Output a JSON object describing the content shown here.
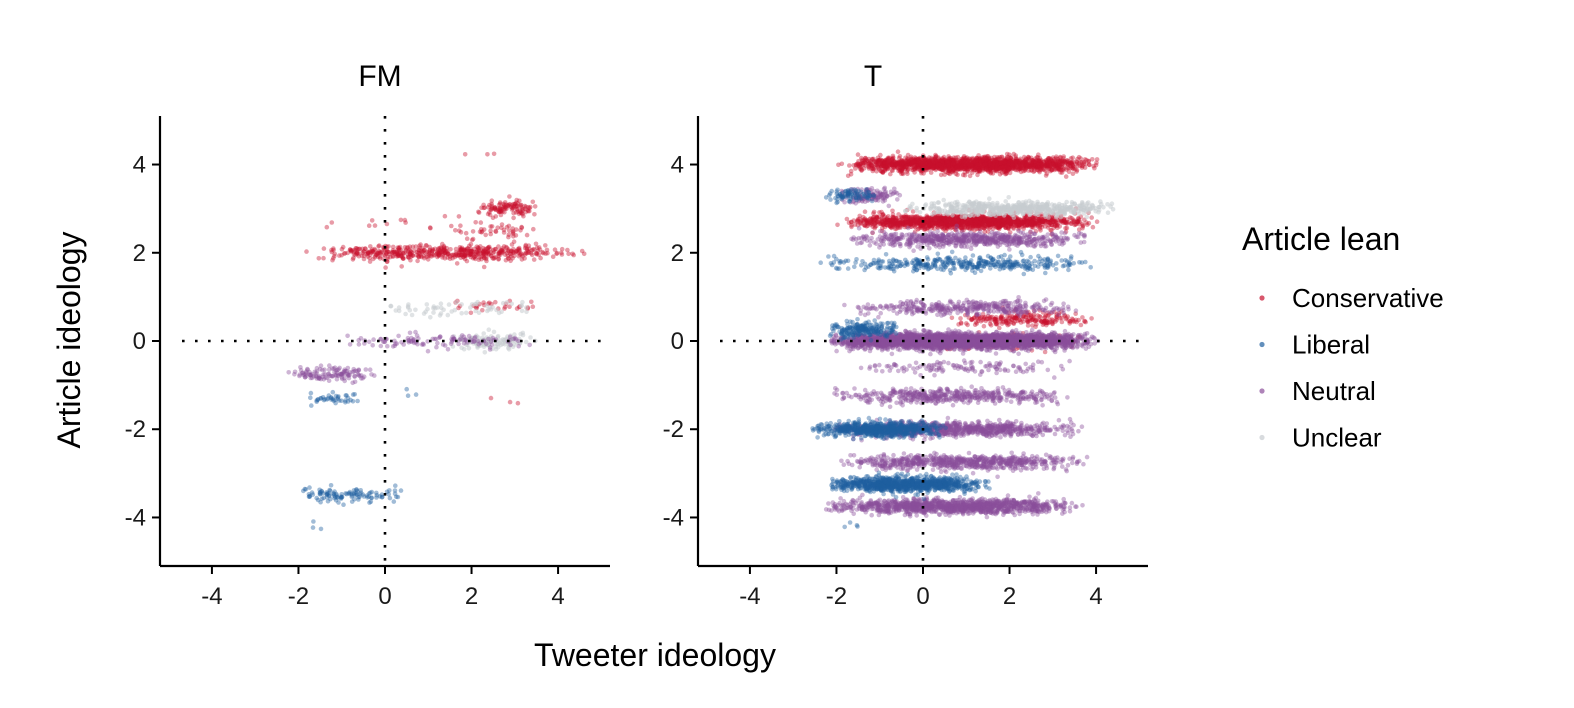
{
  "chart_data": {
    "type": "scatter",
    "xlabel": "Tweeter ideology",
    "ylabel": "Article ideology",
    "xlim": [
      -5.2,
      5.2
    ],
    "ylim": [
      -5.1,
      5.1
    ],
    "xticks": [
      -4,
      -2,
      0,
      2,
      4
    ],
    "yticks": [
      -4,
      -2,
      0,
      2,
      4
    ],
    "grid": false,
    "reference_lines": {
      "x": 0,
      "y": 0,
      "style": "dotted"
    },
    "legend": {
      "title": "Article lean",
      "placement": "right",
      "entries": [
        {
          "name": "Conservative",
          "color": "#c8102e"
        },
        {
          "name": "Liberal",
          "color": "#1f5fa0"
        },
        {
          "name": "Neutral",
          "color": "#8b4f9a"
        },
        {
          "name": "Unclear",
          "color": "#c7ccd0"
        }
      ]
    },
    "panels": [
      {
        "title": "FM",
        "clusters": [
          {
            "series": "Conservative",
            "y": 2.0,
            "x_range": [
              -1.9,
              4.6
            ],
            "count": 520
          },
          {
            "series": "Conservative",
            "y": 3.0,
            "x_range": [
              2.0,
              3.6
            ],
            "count": 110
          },
          {
            "series": "Conservative",
            "y": 2.5,
            "x_range": [
              1.5,
              3.5
            ],
            "count": 45
          },
          {
            "series": "Conservative",
            "y": 0.8,
            "x_range": [
              1.4,
              3.6
            ],
            "count": 30
          },
          {
            "series": "Conservative",
            "y": 2.7,
            "x_range": [
              -1.8,
              3.0
            ],
            "count": 16
          },
          {
            "series": "Conservative",
            "y": 4.3,
            "x_range": [
              1.5,
              3.2
            ],
            "count": 3
          },
          {
            "series": "Conservative",
            "y": -1.4,
            "x_range": [
              2.0,
              4.0
            ],
            "count": 3
          },
          {
            "series": "Unclear",
            "y": 0.75,
            "x_range": [
              -0.5,
              3.8
            ],
            "count": 60
          },
          {
            "series": "Unclear",
            "y": 0.0,
            "x_range": [
              1.5,
              3.5
            ],
            "count": 120
          },
          {
            "series": "Neutral",
            "y": 0.0,
            "x_range": [
              -1.0,
              3.7
            ],
            "count": 110
          },
          {
            "series": "Neutral",
            "y": -0.75,
            "x_range": [
              -2.3,
              -0.1
            ],
            "count": 120
          },
          {
            "series": "Liberal",
            "y": -1.3,
            "x_range": [
              -1.9,
              -0.4
            ],
            "count": 40
          },
          {
            "series": "Liberal",
            "y": -1.2,
            "x_range": [
              0.2,
              1.0
            ],
            "count": 3
          },
          {
            "series": "Liberal",
            "y": -3.5,
            "x_range": [
              -2.3,
              0.4
            ],
            "count": 110
          },
          {
            "series": "Liberal",
            "y": -4.25,
            "x_range": [
              -1.8,
              -1.4
            ],
            "count": 3
          }
        ]
      },
      {
        "title": "T",
        "clusters": [
          {
            "series": "Conservative",
            "y": 4.0,
            "x_range": [
              -2.0,
              4.1
            ],
            "count": 1800
          },
          {
            "series": "Conservative",
            "y": 2.7,
            "x_range": [
              -2.0,
              4.1
            ],
            "count": 1400
          },
          {
            "series": "Conservative",
            "y": 0.5,
            "x_range": [
              0.5,
              4.0
            ],
            "count": 220
          },
          {
            "series": "Conservative",
            "y": 0.0,
            "x_range": [
              -0.2,
              3.8
            ],
            "count": 200
          },
          {
            "series": "Unclear",
            "y": 3.0,
            "x_range": [
              -0.5,
              4.5
            ],
            "count": 500
          },
          {
            "series": "Neutral",
            "y": 2.3,
            "x_range": [
              -2.0,
              4.0
            ],
            "count": 600
          },
          {
            "series": "Neutral",
            "y": 0.0,
            "x_range": [
              -2.2,
              4.0
            ],
            "count": 3800
          },
          {
            "series": "Neutral",
            "y": 0.75,
            "x_range": [
              -2.0,
              3.8
            ],
            "count": 350
          },
          {
            "series": "Neutral",
            "y": -1.25,
            "x_range": [
              -2.2,
              3.5
            ],
            "count": 450
          },
          {
            "series": "Neutral",
            "y": -0.6,
            "x_range": [
              -1.8,
              3.5
            ],
            "count": 120
          },
          {
            "series": "Neutral",
            "y": -2.0,
            "x_range": [
              -2.2,
              3.8
            ],
            "count": 800
          },
          {
            "series": "Neutral",
            "y": -2.75,
            "x_range": [
              -2.0,
              3.8
            ],
            "count": 650
          },
          {
            "series": "Neutral",
            "y": -3.75,
            "x_range": [
              -2.3,
              3.7
            ],
            "count": 1200
          },
          {
            "series": "Neutral",
            "y": 3.3,
            "x_range": [
              -2.0,
              -0.5
            ],
            "count": 120
          },
          {
            "series": "Liberal",
            "y": 3.3,
            "x_range": [
              -2.3,
              -1.0
            ],
            "count": 80
          },
          {
            "series": "Liberal",
            "y": 1.75,
            "x_range": [
              -2.4,
              4.0
            ],
            "count": 360
          },
          {
            "series": "Liberal",
            "y": 0.25,
            "x_range": [
              -2.2,
              -0.5
            ],
            "count": 200
          },
          {
            "series": "Liberal",
            "y": -2.0,
            "x_range": [
              -2.6,
              0.5
            ],
            "count": 650
          },
          {
            "series": "Liberal",
            "y": -3.25,
            "x_range": [
              -2.3,
              1.5
            ],
            "count": 1000
          },
          {
            "series": "Liberal",
            "y": -4.2,
            "x_range": [
              -1.8,
              -1.3
            ],
            "count": 4
          }
        ]
      }
    ]
  }
}
